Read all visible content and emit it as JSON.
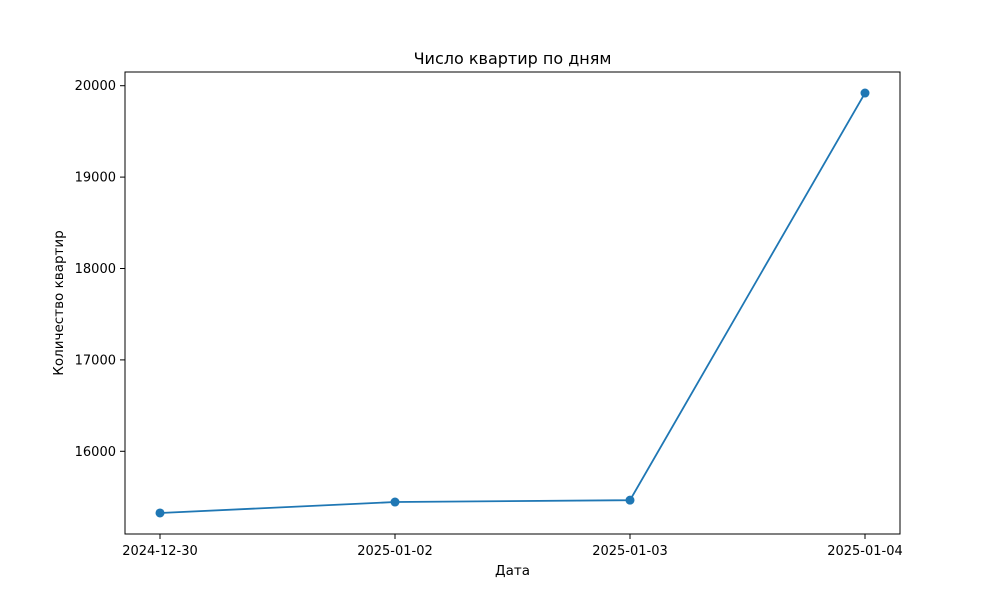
{
  "chart_data": {
    "type": "line",
    "title": "Число квартир по дням",
    "xlabel": "Дата",
    "ylabel": "Количество квартир",
    "x": [
      "2024-12-30",
      "2025-01-02",
      "2025-01-03",
      "2025-01-04"
    ],
    "series": [
      {
        "values": [
          15325,
          15445,
          15465,
          19920
        ],
        "color": "#1f77b4"
      }
    ],
    "yticks": [
      16000,
      17000,
      18000,
      19000,
      20000
    ],
    "ylim": [
      15095,
      20150
    ],
    "grid": false,
    "marker": "circle"
  }
}
